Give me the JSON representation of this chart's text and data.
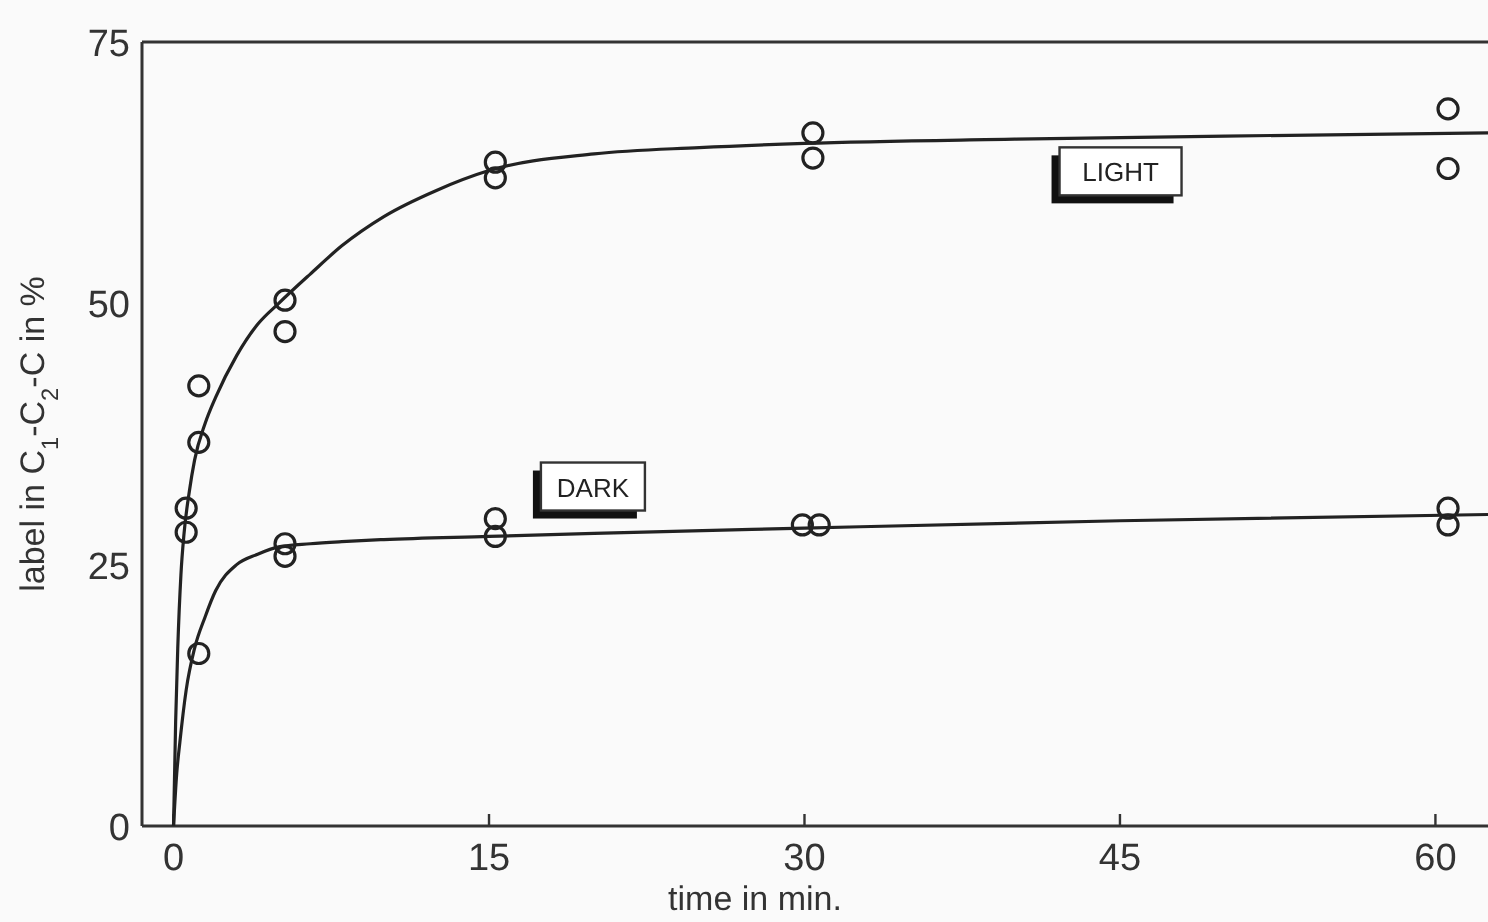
{
  "chart_data": {
    "type": "scatter",
    "xlabel": "time in min.",
    "ylabel": "label in C$_{1}$-C$_{2}$-C in %",
    "xlim": [
      -1.5,
      62.5
    ],
    "ylim": [
      0,
      75
    ],
    "xticks": [
      0,
      15,
      30,
      45,
      60
    ],
    "yticks": [
      0,
      25,
      50,
      75
    ],
    "grid": false,
    "marker": "circle",
    "series": [
      {
        "color": "#222222",
        "x": [
          0.6,
          0.6,
          1.2,
          1.2,
          5.3,
          5.3,
          15.3,
          15.3,
          30.4,
          30.4,
          60.6,
          60.6
        ],
        "values": [
          30.4,
          28.1,
          36.7,
          42.1,
          50.3,
          47.3,
          63.5,
          62,
          66.3,
          63.9,
          68.6,
          62.9
        ]
      },
      {
        "color": "#222222",
        "x": [
          1.2,
          5.3,
          5.3,
          15.3,
          15.3,
          29.9,
          30.7,
          60.6,
          60.6
        ],
        "values": [
          16.5,
          27,
          25.8,
          29.4,
          27.7,
          28.8,
          28.8,
          30.4,
          28.8
        ]
      },
      {
        "name": "LIGHT",
        "type": "line",
        "color": "#222222",
        "marker": "none",
        "x": [
          0,
          0.1,
          0.2,
          0.35,
          0.5,
          0.75,
          1,
          1.5,
          2,
          3,
          4,
          5,
          6.5,
          8,
          10,
          12.5,
          15,
          20,
          25,
          30,
          40,
          50,
          62.5
        ],
        "values": [
          0,
          10,
          17,
          24,
          28,
          32,
          35,
          38.5,
          41,
          45,
          48,
          50,
          52.8,
          55.5,
          58.3,
          60.8,
          62.7,
          64.3,
          64.9,
          65.3,
          65.7,
          66,
          66.3
        ]
      },
      {
        "name": "DARK",
        "type": "line",
        "color": "#222222",
        "marker": "none",
        "x": [
          0,
          0.15,
          0.3,
          0.6,
          1,
          1.5,
          2,
          3,
          4,
          5,
          6.5,
          8,
          10,
          15,
          20,
          30,
          45,
          62.5
        ],
        "values": [
          0,
          5,
          8,
          13,
          17,
          20,
          22.5,
          25,
          26,
          26.7,
          27,
          27.2,
          27.4,
          27.7,
          28,
          28.5,
          29.2,
          29.8
        ]
      }
    ]
  }
}
